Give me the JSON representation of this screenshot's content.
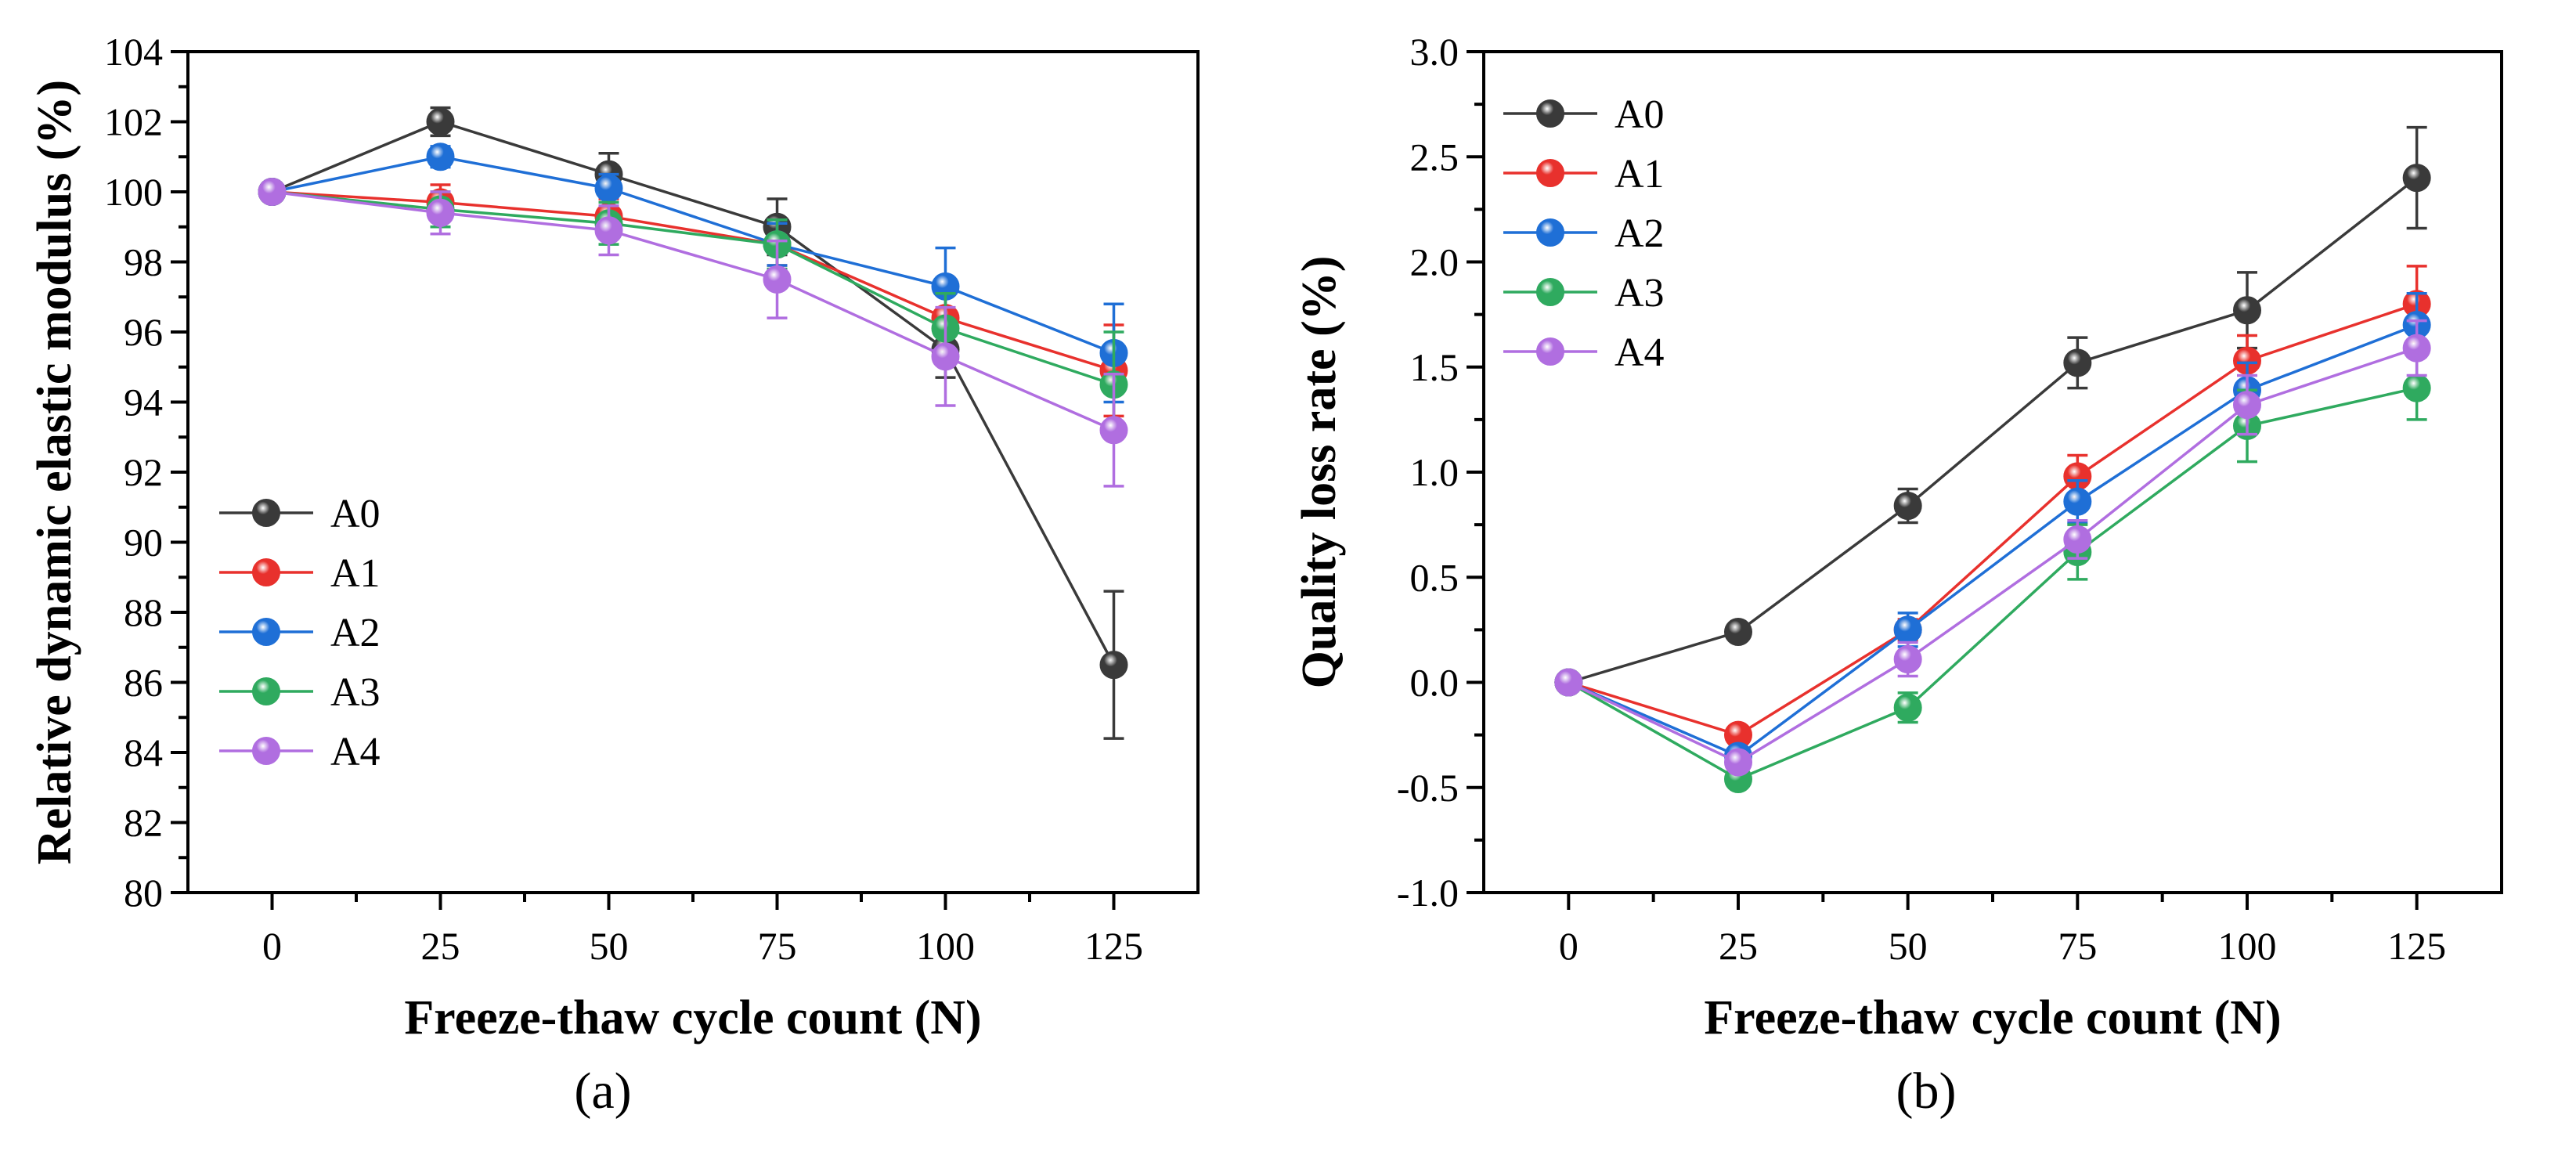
{
  "figure": {
    "panel_labels": [
      "(a)",
      "(b)"
    ]
  },
  "colors": {
    "A0": "#3a3a3a",
    "A1": "#e8312d",
    "A2": "#1f6fd6",
    "A3": "#2faa5f",
    "A4": "#b06ee0"
  },
  "chart_data": [
    {
      "type": "line",
      "panel": "(a)",
      "xlabel": "Freeze-thaw cycle count (N)",
      "ylabel": "Relative dynamic elastic modulus (%)",
      "x": [
        0,
        25,
        50,
        75,
        100,
        125
      ],
      "xlim": [
        -12.5,
        137.5
      ],
      "ylim": [
        80,
        104
      ],
      "xticks": [
        0,
        25,
        50,
        75,
        100,
        125
      ],
      "xtick_labels": [
        "0",
        "25",
        "50",
        "75",
        "100",
        "125"
      ],
      "yticks": [
        80,
        82,
        84,
        86,
        88,
        90,
        92,
        94,
        96,
        98,
        100,
        102,
        104
      ],
      "ytick_labels": [
        "80",
        "82",
        "84",
        "86",
        "88",
        "90",
        "92",
        "94",
        "96",
        "98",
        "100",
        "102",
        "104"
      ],
      "legend_position": "center-left",
      "series": [
        {
          "name": "A0",
          "values": [
            100,
            102.0,
            100.5,
            99.0,
            95.5,
            86.5
          ],
          "errors": [
            0,
            0.4,
            0.6,
            0.8,
            0.8,
            2.1
          ]
        },
        {
          "name": "A1",
          "values": [
            100,
            99.7,
            99.3,
            98.5,
            96.4,
            94.9
          ],
          "errors": [
            0,
            0.5,
            0.5,
            0.6,
            0.9,
            1.3
          ]
        },
        {
          "name": "A2",
          "values": [
            100,
            101.0,
            100.1,
            98.5,
            97.3,
            95.4
          ],
          "errors": [
            0,
            0.3,
            0.4,
            0.6,
            1.1,
            1.4
          ]
        },
        {
          "name": "A3",
          "values": [
            100,
            99.5,
            99.1,
            98.5,
            96.1,
            94.5
          ],
          "errors": [
            0,
            0.5,
            0.6,
            0.7,
            1.0,
            1.5
          ]
        },
        {
          "name": "A4",
          "values": [
            100,
            99.4,
            98.9,
            97.5,
            95.3,
            93.2
          ],
          "errors": [
            0,
            0.6,
            0.7,
            1.1,
            1.4,
            1.6
          ]
        }
      ]
    },
    {
      "type": "line",
      "panel": "(b)",
      "xlabel": "Freeze-thaw cycle count (N)",
      "ylabel": "Quality loss rate (%)",
      "x": [
        0,
        25,
        50,
        75,
        100,
        125
      ],
      "xlim": [
        -12.5,
        137.5
      ],
      "ylim": [
        -1.0,
        3.0
      ],
      "xticks": [
        0,
        25,
        50,
        75,
        100,
        125
      ],
      "xtick_labels": [
        "0",
        "25",
        "50",
        "75",
        "100",
        "125"
      ],
      "yticks": [
        -1.0,
        -0.5,
        0.0,
        0.5,
        1.0,
        1.5,
        2.0,
        2.5,
        3.0
      ],
      "ytick_labels": [
        "-1.0",
        "-0.5",
        "0.0",
        "0.5",
        "1.0",
        "1.5",
        "2.0",
        "2.5",
        "3.0"
      ],
      "legend_position": "top-left",
      "series": [
        {
          "name": "A0",
          "values": [
            0,
            0.24,
            0.84,
            1.52,
            1.77,
            2.4
          ],
          "errors": [
            0,
            0.02,
            0.08,
            0.12,
            0.18,
            0.24
          ]
        },
        {
          "name": "A1",
          "values": [
            0,
            -0.25,
            0.25,
            0.98,
            1.53,
            1.8
          ],
          "errors": [
            0,
            0.03,
            0.05,
            0.1,
            0.12,
            0.18
          ]
        },
        {
          "name": "A2",
          "values": [
            0,
            -0.35,
            0.25,
            0.86,
            1.39,
            1.7
          ],
          "errors": [
            0,
            0.03,
            0.08,
            0.1,
            0.13,
            0.15
          ]
        },
        {
          "name": "A3",
          "values": [
            0,
            -0.46,
            -0.12,
            0.62,
            1.22,
            1.4
          ],
          "errors": [
            0,
            0.03,
            0.07,
            0.13,
            0.17,
            0.15
          ]
        },
        {
          "name": "A4",
          "values": [
            0,
            -0.38,
            0.11,
            0.68,
            1.32,
            1.59
          ],
          "errors": [
            0,
            0.03,
            0.08,
            0.09,
            0.14,
            0.13
          ]
        }
      ]
    }
  ]
}
